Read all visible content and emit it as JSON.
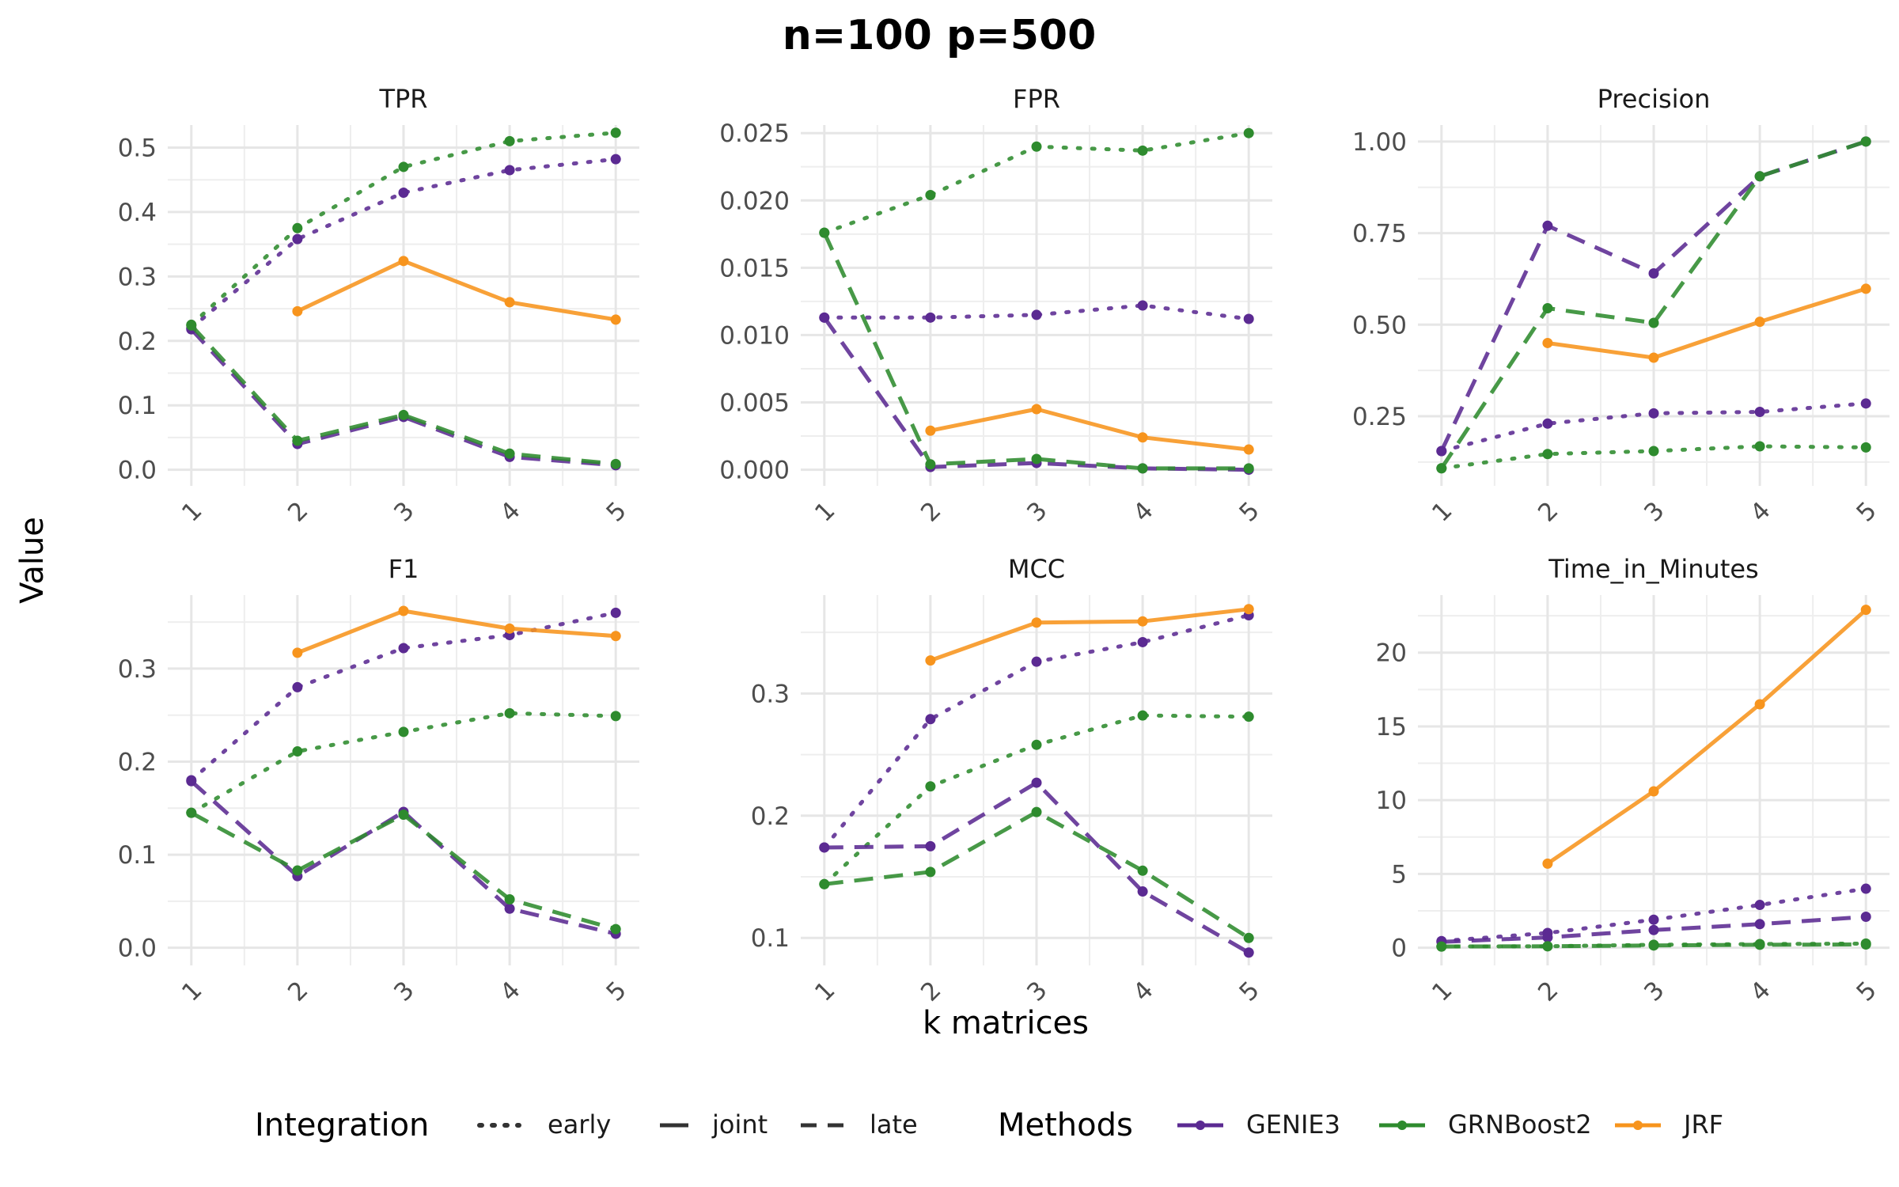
{
  "title": "n=100 p=500",
  "xlabel": "k matrices",
  "ylabel": "Value",
  "legend": {
    "integration_title": "Integration",
    "integration_items": [
      "early",
      "joint",
      "late"
    ],
    "methods_title": "Methods",
    "methods_items": [
      "GENIE3",
      "GRNBoost2",
      "JRF"
    ]
  },
  "colors": {
    "GENIE3": "#5b2a92",
    "GRNBoost2": "#2e8b2e",
    "JRF": "#f7941d",
    "grid": "#e6e6e6",
    "axis_text": "#4d4d4d"
  },
  "chart_data": [
    {
      "type": "line",
      "title": "TPR",
      "x": [
        1,
        2,
        3,
        4,
        5
      ],
      "ylim": [
        -0.025,
        0.535
      ],
      "ticks": [
        0.0,
        0.1,
        0.2,
        0.3,
        0.4,
        0.5
      ],
      "tick_labels": [
        "0.0",
        "0.1",
        "0.2",
        "0.3",
        "0.4",
        "0.5"
      ],
      "series": [
        {
          "method": "GENIE3",
          "integration": "early",
          "values": [
            0.22,
            0.358,
            0.43,
            0.465,
            0.482
          ]
        },
        {
          "method": "GRNBoost2",
          "integration": "early",
          "values": [
            0.225,
            0.375,
            0.47,
            0.51,
            0.523
          ]
        },
        {
          "method": "GENIE3",
          "integration": "late",
          "values": [
            0.218,
            0.04,
            0.082,
            0.02,
            0.007
          ]
        },
        {
          "method": "GRNBoost2",
          "integration": "late",
          "values": [
            0.224,
            0.045,
            0.085,
            0.025,
            0.009
          ]
        },
        {
          "method": "JRF",
          "integration": "joint",
          "values": [
            null,
            0.246,
            0.324,
            0.26,
            0.233
          ]
        }
      ]
    },
    {
      "type": "line",
      "title": "FPR",
      "x": [
        1,
        2,
        3,
        4,
        5
      ],
      "ylim": [
        -0.0012,
        0.0256
      ],
      "ticks": [
        0,
        0.005,
        0.01,
        0.015,
        0.02,
        0.025
      ],
      "tick_labels": [
        "0.000",
        "0.005",
        "0.010",
        "0.015",
        "0.020",
        "0.025"
      ],
      "series": [
        {
          "method": "GENIE3",
          "integration": "early",
          "values": [
            0.0113,
            0.0113,
            0.0115,
            0.0122,
            0.0112
          ]
        },
        {
          "method": "GRNBoost2",
          "integration": "early",
          "values": [
            0.0176,
            0.0204,
            0.024,
            0.0237,
            0.025
          ]
        },
        {
          "method": "GENIE3",
          "integration": "late",
          "values": [
            0.0113,
            0.0002,
            0.0005,
            0.0001,
            0.0
          ]
        },
        {
          "method": "GRNBoost2",
          "integration": "late",
          "values": [
            0.0176,
            0.0004,
            0.0008,
            0.0001,
            0.0001
          ]
        },
        {
          "method": "JRF",
          "integration": "joint",
          "values": [
            null,
            0.0029,
            0.0045,
            0.0024,
            0.0015
          ]
        }
      ]
    },
    {
      "type": "line",
      "title": "Precision",
      "x": [
        1,
        2,
        3,
        4,
        5
      ],
      "ylim": [
        0.06,
        1.045
      ],
      "ticks": [
        0.25,
        0.5,
        0.75,
        1.0
      ],
      "tick_labels": [
        "0.25",
        "0.50",
        "0.75",
        "1.00"
      ],
      "series": [
        {
          "method": "GENIE3",
          "integration": "early",
          "values": [
            0.155,
            0.23,
            0.258,
            0.262,
            0.285
          ]
        },
        {
          "method": "GRNBoost2",
          "integration": "early",
          "values": [
            0.108,
            0.147,
            0.155,
            0.168,
            0.165
          ]
        },
        {
          "method": "GENIE3",
          "integration": "late",
          "values": [
            0.155,
            0.77,
            0.64,
            0.905,
            1.0
          ]
        },
        {
          "method": "GRNBoost2",
          "integration": "late",
          "values": [
            0.108,
            0.545,
            0.505,
            0.905,
            1.0
          ]
        },
        {
          "method": "JRF",
          "integration": "joint",
          "values": [
            null,
            0.45,
            0.41,
            0.508,
            0.598
          ]
        }
      ]
    },
    {
      "type": "line",
      "title": "F1",
      "x": [
        1,
        2,
        3,
        4,
        5
      ],
      "ylim": [
        -0.019,
        0.379
      ],
      "ticks": [
        0.0,
        0.1,
        0.2,
        0.3
      ],
      "tick_labels": [
        "0.0",
        "0.1",
        "0.2",
        "0.3"
      ],
      "series": [
        {
          "method": "GENIE3",
          "integration": "early",
          "values": [
            0.18,
            0.28,
            0.322,
            0.336,
            0.36
          ]
        },
        {
          "method": "GRNBoost2",
          "integration": "early",
          "values": [
            0.145,
            0.211,
            0.232,
            0.252,
            0.249
          ]
        },
        {
          "method": "GENIE3",
          "integration": "late",
          "values": [
            0.179,
            0.077,
            0.146,
            0.042,
            0.015
          ]
        },
        {
          "method": "GRNBoost2",
          "integration": "late",
          "values": [
            0.145,
            0.083,
            0.143,
            0.052,
            0.02
          ]
        },
        {
          "method": "JRF",
          "integration": "joint",
          "values": [
            null,
            0.317,
            0.362,
            0.343,
            0.335
          ]
        }
      ]
    },
    {
      "type": "line",
      "title": "MCC",
      "x": [
        1,
        2,
        3,
        4,
        5
      ],
      "ylim": [
        0.0775,
        0.3805
      ],
      "ticks": [
        0.1,
        0.2,
        0.3
      ],
      "tick_labels": [
        "0.1",
        "0.2",
        "0.3"
      ],
      "series": [
        {
          "method": "GENIE3",
          "integration": "early",
          "values": [
            0.174,
            0.279,
            0.326,
            0.342,
            0.364
          ]
        },
        {
          "method": "GRNBoost2",
          "integration": "early",
          "values": [
            0.144,
            0.224,
            0.258,
            0.282,
            0.281
          ]
        },
        {
          "method": "GENIE3",
          "integration": "late",
          "values": [
            0.174,
            0.175,
            0.227,
            0.138,
            0.088
          ]
        },
        {
          "method": "GRNBoost2",
          "integration": "late",
          "values": [
            0.144,
            0.154,
            0.203,
            0.155,
            0.1
          ]
        },
        {
          "method": "JRF",
          "integration": "joint",
          "values": [
            null,
            0.327,
            0.358,
            0.359,
            0.369
          ]
        }
      ]
    },
    {
      "type": "line",
      "title": "Time_in_Minutes",
      "x": [
        1,
        2,
        3,
        4,
        5
      ],
      "ylim": [
        -1.2,
        23.9
      ],
      "ticks": [
        0,
        5,
        10,
        15,
        20
      ],
      "tick_labels": [
        "0",
        "5",
        "10",
        "15",
        "20"
      ],
      "series": [
        {
          "method": "GENIE3",
          "integration": "early",
          "values": [
            0.45,
            1.0,
            1.9,
            2.9,
            4.0
          ]
        },
        {
          "method": "GRNBoost2",
          "integration": "early",
          "values": [
            0.08,
            0.1,
            0.2,
            0.25,
            0.28
          ]
        },
        {
          "method": "GENIE3",
          "integration": "late",
          "values": [
            0.4,
            0.7,
            1.2,
            1.6,
            2.1
          ]
        },
        {
          "method": "GRNBoost2",
          "integration": "late",
          "values": [
            0.08,
            0.1,
            0.15,
            0.2,
            0.22
          ]
        },
        {
          "method": "JRF",
          "integration": "joint",
          "values": [
            null,
            5.7,
            10.6,
            16.5,
            22.9
          ]
        }
      ]
    }
  ]
}
